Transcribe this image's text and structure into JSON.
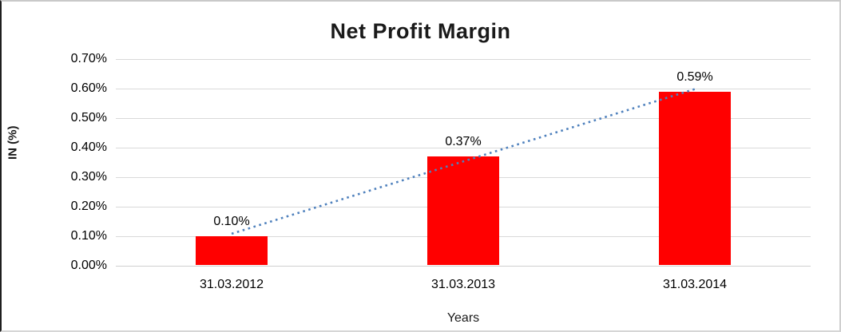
{
  "chart_data": {
    "type": "bar",
    "title": "Net Profit Margin",
    "xlabel": "Years",
    "ylabel": "IN (%)",
    "categories": [
      "31.03.2012",
      "31.03.2013",
      "31.03.2014"
    ],
    "values": [
      0.1,
      0.37,
      0.59
    ],
    "data_labels": [
      "0.10%",
      "0.37%",
      "0.59%"
    ],
    "y_tick_labels": [
      "0.00%",
      "0.10%",
      "0.20%",
      "0.30%",
      "0.40%",
      "0.50%",
      "0.60%",
      "0.70%"
    ],
    "ylim": [
      0,
      0.7
    ],
    "y_tick_step": 0.1,
    "grid": true,
    "legend": "none",
    "bar_color": "#ff0000",
    "gridline_color": "#d9d9d9",
    "axis_line_color": "#cfcfcf",
    "trendline": {
      "type": "linear",
      "style": "dotted",
      "color": "#4f81bd"
    }
  }
}
